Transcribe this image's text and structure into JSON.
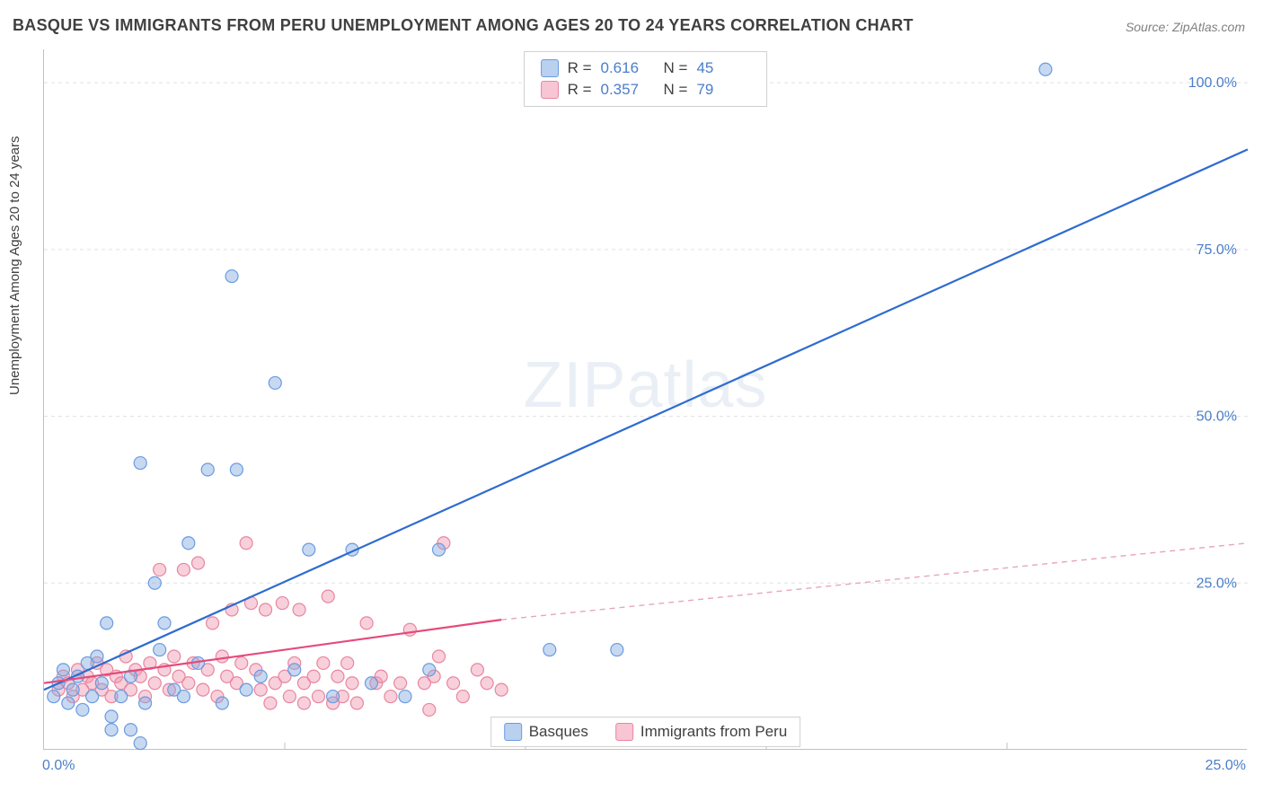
{
  "title": "BASQUE VS IMMIGRANTS FROM PERU UNEMPLOYMENT AMONG AGES 20 TO 24 YEARS CORRELATION CHART",
  "source": "Source: ZipAtlas.com",
  "ylabel": "Unemployment Among Ages 20 to 24 years",
  "watermark_zip": "ZIP",
  "watermark_atlas": "atlas",
  "chart": {
    "type": "scatter",
    "xlim": [
      0,
      25
    ],
    "ylim": [
      0,
      105
    ],
    "xtick_labels": [
      "0.0%",
      "25.0%"
    ],
    "xtick_positions": [
      0,
      25
    ],
    "ytick_labels": [
      "25.0%",
      "50.0%",
      "75.0%",
      "100.0%"
    ],
    "ytick_positions": [
      25,
      50,
      75,
      100
    ],
    "minor_vgrid": [
      5,
      10,
      15,
      20
    ],
    "background_color": "#ffffff",
    "grid_color": "#e0e0e0",
    "axis_color": "#c0c0c0",
    "tick_color_x": "#4a7ec9",
    "tick_color_y": "#4a7ec9",
    "tick_fontsize": 16,
    "marker_radius": 7,
    "marker_stroke_width": 1.2,
    "series": [
      {
        "name": "Basques",
        "color_fill": "rgba(130,170,225,0.45)",
        "color_stroke": "#6a9be0",
        "R": "0.616",
        "N": "45",
        "regression": {
          "x1": 0,
          "y1": 9,
          "x2": 25,
          "y2": 90,
          "stroke": "#2e6bd1",
          "width": 2.2,
          "dash": "none"
        },
        "points": [
          [
            0.2,
            8
          ],
          [
            0.3,
            10
          ],
          [
            0.4,
            12
          ],
          [
            0.5,
            7
          ],
          [
            0.6,
            9
          ],
          [
            0.7,
            11
          ],
          [
            0.8,
            6
          ],
          [
            0.9,
            13
          ],
          [
            1.0,
            8
          ],
          [
            1.1,
            14
          ],
          [
            1.2,
            10
          ],
          [
            1.3,
            19
          ],
          [
            1.4,
            5
          ],
          [
            1.6,
            8
          ],
          [
            1.8,
            11
          ],
          [
            2.0,
            43
          ],
          [
            2.1,
            7
          ],
          [
            2.3,
            25
          ],
          [
            2.5,
            19
          ],
          [
            2.7,
            9
          ],
          [
            2.9,
            8
          ],
          [
            2.0,
            1
          ],
          [
            1.8,
            3
          ],
          [
            3.0,
            31
          ],
          [
            3.2,
            13
          ],
          [
            3.4,
            42
          ],
          [
            2.4,
            15
          ],
          [
            3.7,
            7
          ],
          [
            3.9,
            71
          ],
          [
            4.0,
            42
          ],
          [
            4.2,
            9
          ],
          [
            4.5,
            11
          ],
          [
            4.8,
            55
          ],
          [
            5.2,
            12
          ],
          [
            5.5,
            30
          ],
          [
            6.0,
            8
          ],
          [
            6.4,
            30
          ],
          [
            6.8,
            10
          ],
          [
            7.5,
            8
          ],
          [
            8.2,
            30
          ],
          [
            8.0,
            12
          ],
          [
            10.5,
            15
          ],
          [
            11.9,
            15
          ],
          [
            20.8,
            102
          ],
          [
            1.4,
            3
          ]
        ]
      },
      {
        "name": "Immigrants from Peru",
        "color_fill": "rgba(240,150,175,0.45)",
        "color_stroke": "#e8869f",
        "R": "0.357",
        "N": "79",
        "regression_solid": {
          "x1": 0,
          "y1": 10,
          "x2": 9.5,
          "y2": 19.5,
          "stroke": "#e64a7a",
          "width": 2.2
        },
        "regression_dash": {
          "x1": 9.5,
          "y1": 19.5,
          "x2": 25,
          "y2": 31,
          "stroke": "#e8a6b8",
          "width": 1.4,
          "dash": "6 5"
        },
        "points": [
          [
            0.3,
            9
          ],
          [
            0.4,
            11
          ],
          [
            0.5,
            10
          ],
          [
            0.6,
            8
          ],
          [
            0.7,
            12
          ],
          [
            0.8,
            9
          ],
          [
            0.9,
            11
          ],
          [
            1.0,
            10
          ],
          [
            1.1,
            13
          ],
          [
            1.2,
            9
          ],
          [
            1.3,
            12
          ],
          [
            1.4,
            8
          ],
          [
            1.5,
            11
          ],
          [
            1.6,
            10
          ],
          [
            1.7,
            14
          ],
          [
            1.8,
            9
          ],
          [
            1.9,
            12
          ],
          [
            2.0,
            11
          ],
          [
            2.1,
            8
          ],
          [
            2.2,
            13
          ],
          [
            2.3,
            10
          ],
          [
            2.4,
            27
          ],
          [
            2.5,
            12
          ],
          [
            2.6,
            9
          ],
          [
            2.7,
            14
          ],
          [
            2.8,
            11
          ],
          [
            2.9,
            27
          ],
          [
            3.0,
            10
          ],
          [
            3.1,
            13
          ],
          [
            3.2,
            28
          ],
          [
            3.3,
            9
          ],
          [
            3.4,
            12
          ],
          [
            3.5,
            19
          ],
          [
            3.6,
            8
          ],
          [
            3.7,
            14
          ],
          [
            3.8,
            11
          ],
          [
            3.9,
            21
          ],
          [
            4.0,
            10
          ],
          [
            4.1,
            13
          ],
          [
            4.2,
            31
          ],
          [
            4.3,
            22
          ],
          [
            4.4,
            12
          ],
          [
            4.5,
            9
          ],
          [
            4.6,
            21
          ],
          [
            4.7,
            7
          ],
          [
            4.8,
            10
          ],
          [
            4.95,
            22
          ],
          [
            5.0,
            11
          ],
          [
            5.1,
            8
          ],
          [
            5.2,
            13
          ],
          [
            5.3,
            21
          ],
          [
            5.4,
            10
          ],
          [
            5.4,
            7
          ],
          [
            5.6,
            11
          ],
          [
            5.7,
            8
          ],
          [
            5.8,
            13
          ],
          [
            5.9,
            23
          ],
          [
            6.0,
            7
          ],
          [
            6.1,
            11
          ],
          [
            6.2,
            8
          ],
          [
            6.3,
            13
          ],
          [
            6.4,
            10
          ],
          [
            6.5,
            7
          ],
          [
            6.7,
            19
          ],
          [
            6.9,
            10
          ],
          [
            7.0,
            11
          ],
          [
            7.2,
            8
          ],
          [
            7.4,
            10
          ],
          [
            7.6,
            18
          ],
          [
            7.9,
            10
          ],
          [
            8.0,
            6
          ],
          [
            8.1,
            11
          ],
          [
            8.2,
            14
          ],
          [
            8.3,
            31
          ],
          [
            8.5,
            10
          ],
          [
            8.7,
            8
          ],
          [
            9.0,
            12
          ],
          [
            9.2,
            10
          ],
          [
            9.5,
            9
          ]
        ]
      }
    ]
  },
  "legend": {
    "items": [
      {
        "label": "Basques",
        "fill": "rgba(130,170,225,0.55)",
        "stroke": "#6a9be0"
      },
      {
        "label": "Immigrants from Peru",
        "fill": "rgba(240,150,175,0.55)",
        "stroke": "#e8869f"
      }
    ]
  }
}
